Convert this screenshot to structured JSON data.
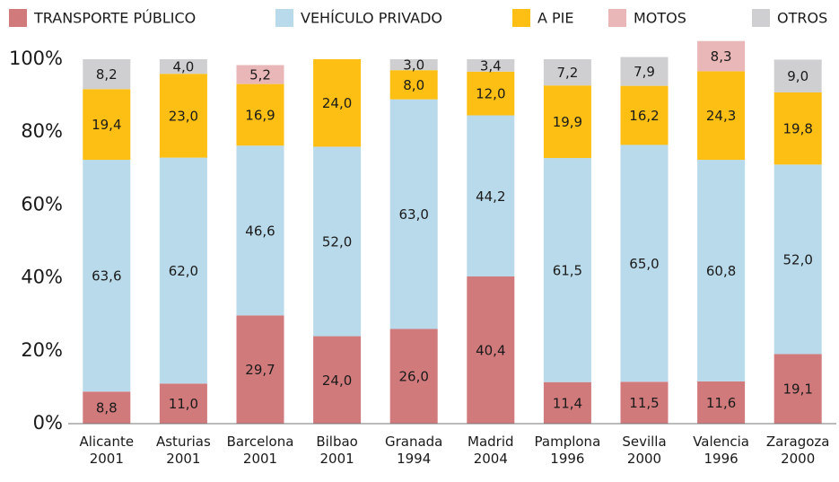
{
  "chart_data": {
    "type": "stacked_bar",
    "categories": [
      "Alicante\n2001",
      "Asturias\n2001",
      "Barcelona\n2001",
      "Bilbao\n2001",
      "Granada\n1994",
      "Madrid\n2004",
      "Pamplona\n1996",
      "Sevilla\n2000",
      "Valencia\n1996",
      "Zaragoza\n2000"
    ],
    "series": [
      {
        "name": "TRANSPORTE PÚBLICO",
        "color": "#d07a7c",
        "values": [
          8.8,
          11.0,
          29.7,
          24.0,
          26.0,
          40.4,
          11.4,
          11.5,
          11.6,
          19.1
        ],
        "value_labels": [
          "8,8",
          "11,0",
          "29,7",
          "24,0",
          "26,0",
          "40,4",
          "11,4",
          "11,5",
          "11,6",
          "19,1"
        ]
      },
      {
        "name": "VEHÍCULO PRIVADO",
        "color": "#b9daea",
        "values": [
          63.6,
          62.0,
          46.6,
          52.0,
          63.0,
          44.2,
          61.5,
          65.0,
          60.8,
          52.0
        ],
        "value_labels": [
          "63,6",
          "62,0",
          "46,6",
          "52,0",
          "63,0",
          "44,2",
          "61,5",
          "65,0",
          "60,8",
          "52,0"
        ]
      },
      {
        "name": "A PIE",
        "color": "#fdbf13",
        "values": [
          19.4,
          23.0,
          16.9,
          24.0,
          8.0,
          12.0,
          19.9,
          16.2,
          24.3,
          19.8
        ],
        "value_labels": [
          "19,4",
          "23,0",
          "16,9",
          "24,0",
          "8,0",
          "12,0",
          "19,9",
          "16,2",
          "24,3",
          "19,8"
        ]
      },
      {
        "name": "MOTOS",
        "color": "#eab7b8",
        "values": [
          null,
          null,
          5.2,
          null,
          null,
          null,
          null,
          null,
          8.3,
          null
        ],
        "value_labels": [
          null,
          null,
          "5,2",
          null,
          null,
          null,
          null,
          null,
          "8,3",
          null
        ]
      },
      {
        "name": "OTROS",
        "color": "#cfcfd1",
        "values": [
          8.2,
          4.0,
          null,
          null,
          3.0,
          3.4,
          7.2,
          7.9,
          null,
          9.0
        ],
        "value_labels": [
          "8,2",
          "4,0",
          null,
          null,
          "3,0",
          "3,4",
          "7,2",
          "7,9",
          null,
          "9,0"
        ]
      }
    ],
    "ylim": [
      0,
      100
    ],
    "yticks": [
      {
        "value": 0,
        "label": "0%"
      },
      {
        "value": 20,
        "label": "20%"
      },
      {
        "value": 40,
        "label": "40%"
      },
      {
        "value": 60,
        "label": "60%"
      },
      {
        "value": 80,
        "label": "80%"
      },
      {
        "value": 100,
        "label": "100%"
      }
    ],
    "grid": false
  }
}
